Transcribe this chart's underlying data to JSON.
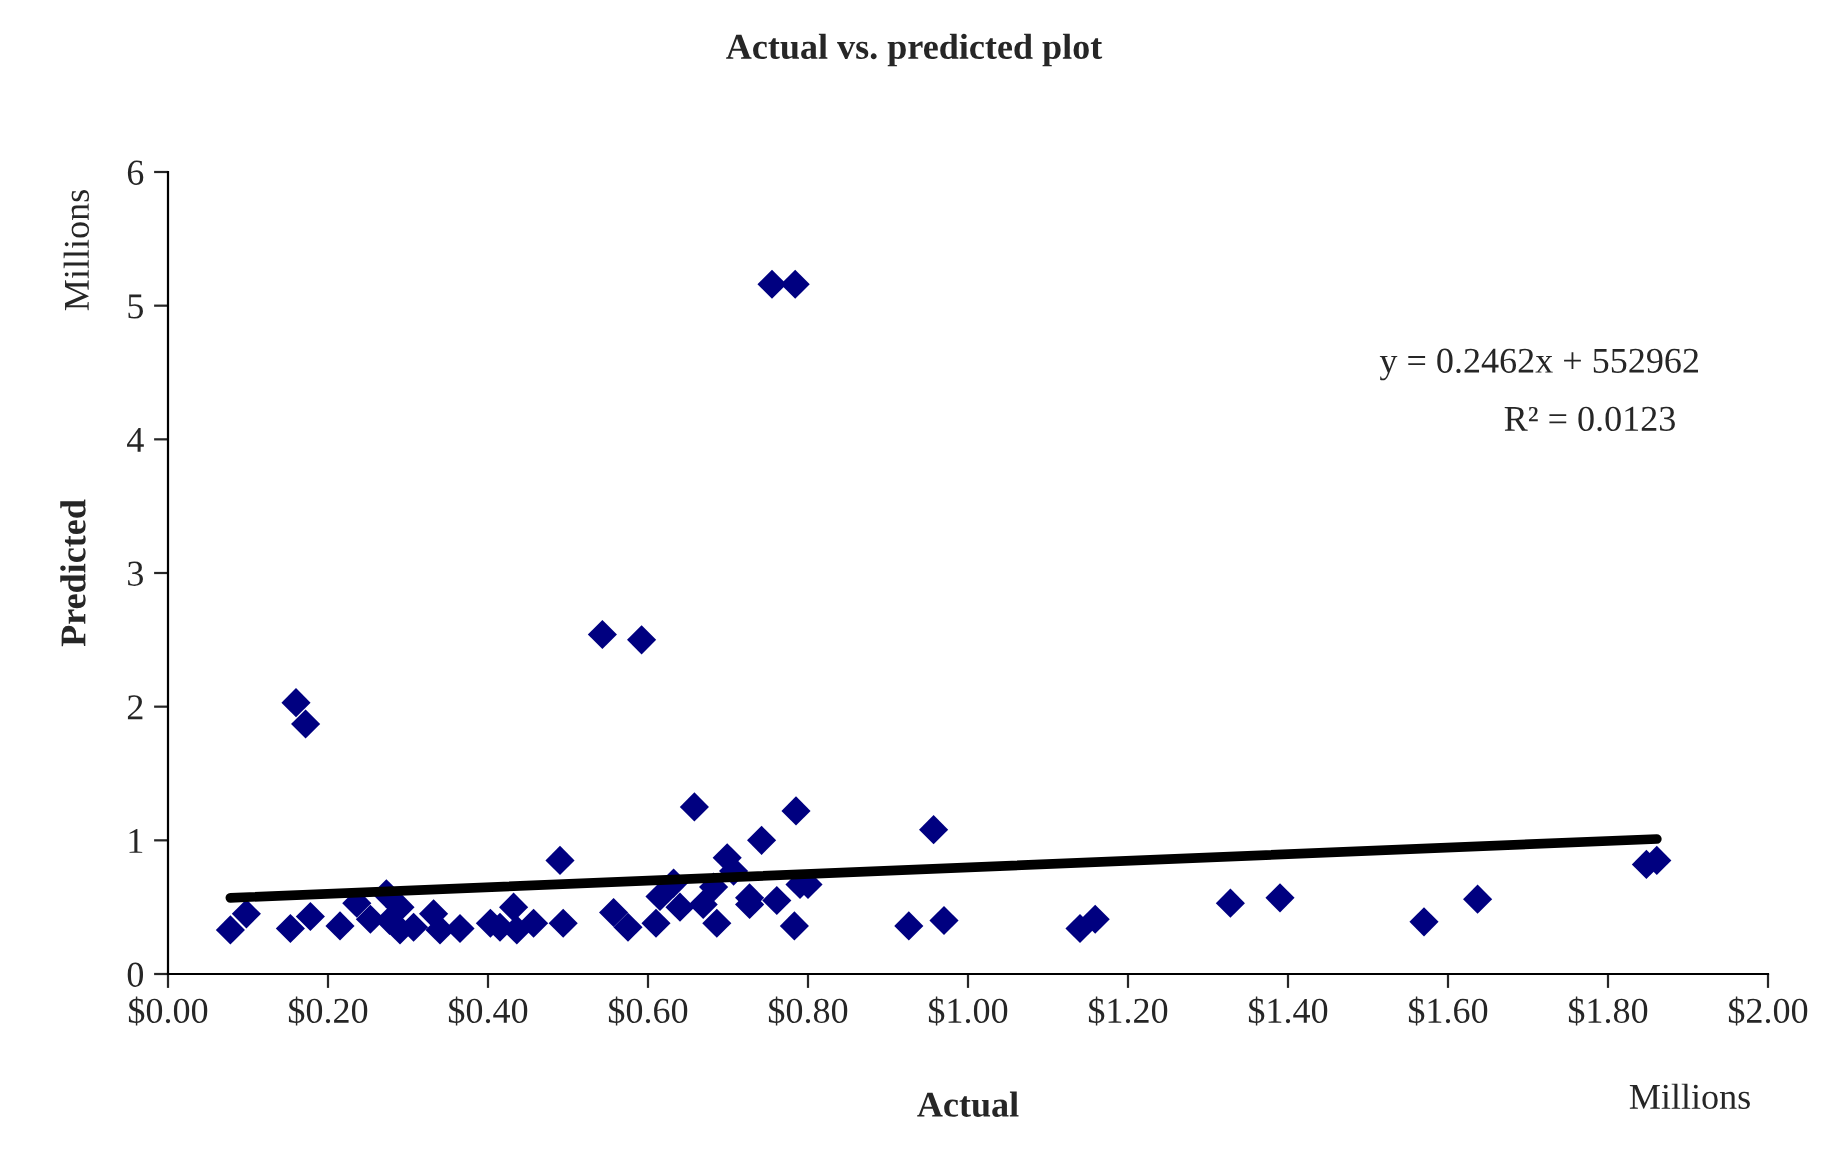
{
  "chart_data": {
    "type": "scatter",
    "title": "Actual vs. predicted plot",
    "xlabel": "Actual",
    "ylabel": "Predicted",
    "annotations": [
      "y = 0.2462x + 552962",
      "R² = 0.0123",
      "Millions",
      "Millions"
    ],
    "xlim": [
      0,
      2
    ],
    "ylim": [
      0,
      6
    ],
    "xticks": [
      {
        "value": 0,
        "label": "$0.00"
      },
      {
        "value": 0.2,
        "label": "$0.20"
      },
      {
        "value": 0.4,
        "label": "$0.40"
      },
      {
        "value": 0.6,
        "label": "$0.60"
      },
      {
        "value": 0.8,
        "label": "$0.80"
      },
      {
        "value": 1.0,
        "label": "$1.00"
      },
      {
        "value": 1.2,
        "label": "$1.20"
      },
      {
        "value": 1.4,
        "label": "$1.40"
      },
      {
        "value": 1.6,
        "label": "$1.60"
      },
      {
        "value": 1.8,
        "label": "$1.80"
      },
      {
        "value": 2.0,
        "label": "$2.00"
      }
    ],
    "yticks": [
      0,
      1,
      2,
      3,
      4,
      5,
      6
    ],
    "grid": false,
    "legend": false,
    "marker": "diamond",
    "series": [
      {
        "color": "#000080",
        "x": [
          0.755,
          0.784,
          0.543,
          0.592,
          0.16,
          0.172,
          0.957,
          0.926,
          0.97,
          1.14,
          1.159,
          1.328,
          1.39,
          1.57,
          1.637,
          1.848,
          1.861,
          0.078,
          0.098,
          0.153,
          0.178,
          0.215,
          0.236,
          0.253,
          0.273,
          0.277,
          0.29,
          0.29,
          0.307,
          0.332,
          0.34,
          0.365,
          0.403,
          0.415,
          0.432,
          0.436,
          0.457,
          0.49,
          0.494,
          0.557,
          0.575,
          0.61,
          0.615,
          0.632,
          0.64,
          0.658,
          0.669,
          0.686,
          0.682,
          0.699,
          0.707,
          0.727,
          0.727,
          0.742,
          0.761,
          0.783,
          0.785,
          0.79,
          0.8
        ],
        "values": [
          5.16,
          5.16,
          2.54,
          2.5,
          2.03,
          1.87,
          1.08,
          0.36,
          0.4,
          0.34,
          0.41,
          0.53,
          0.57,
          0.39,
          0.56,
          0.82,
          0.85,
          0.33,
          0.45,
          0.34,
          0.43,
          0.36,
          0.53,
          0.41,
          0.6,
          0.4,
          0.33,
          0.5,
          0.35,
          0.45,
          0.33,
          0.34,
          0.38,
          0.35,
          0.5,
          0.33,
          0.38,
          0.85,
          0.38,
          0.46,
          0.35,
          0.38,
          0.58,
          0.68,
          0.5,
          1.25,
          0.52,
          0.38,
          0.65,
          0.87,
          0.77,
          0.57,
          0.52,
          1.0,
          0.55,
          0.36,
          1.22,
          0.67,
          0.67
        ]
      },
      {
        "type": "line",
        "color": "#000000",
        "marker": "none",
        "x": [
          0.078,
          1.861
        ],
        "values": [
          0.57,
          1.01
        ]
      }
    ]
  }
}
